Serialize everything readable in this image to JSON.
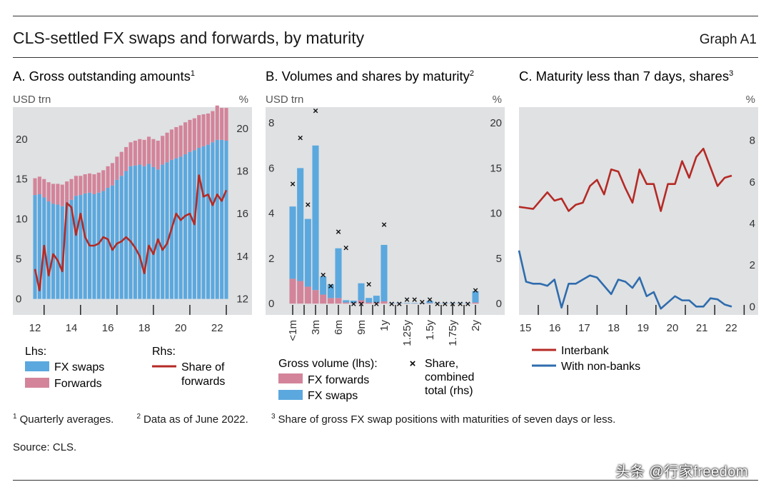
{
  "header": {
    "title": "CLS-settled FX swaps and forwards, by maturity",
    "graph_id": "Graph A1"
  },
  "footnotes": [
    {
      "num": "1",
      "text": "Quarterly averages."
    },
    {
      "num": "2",
      "text": "Data as of June 2022."
    },
    {
      "num": "3",
      "text": "Share of gross FX swap positions with maturities of seven days or less."
    }
  ],
  "source": "Source: CLS.",
  "watermark": "头条 @行家freedom",
  "colors": {
    "panel_bg": "#dfe1e3",
    "swaps": "#5ba8de",
    "forwards": "#d3849a",
    "red_line": "#b52a25",
    "blue_line": "#2f6cad",
    "marker": "#111111"
  },
  "chart_data": [
    {
      "type": "bar",
      "title": "A. Gross outstanding amounts",
      "title_sup": "1",
      "lhs_unit": "USD trn",
      "rhs_unit": "%",
      "ylim": [
        -2,
        24
      ],
      "y_ticks": [
        0,
        5,
        10,
        15,
        20
      ],
      "rhs_ylim": [
        11.25,
        21
      ],
      "rhs_ticks": [
        12,
        14,
        16,
        18,
        20
      ],
      "x_ticks": [
        "12",
        "14",
        "16",
        "18",
        "20",
        "22"
      ],
      "x_start_year": 2012,
      "series": [
        {
          "name": "FX swaps",
          "values": [
            13.0,
            13.1,
            12.7,
            12.2,
            11.9,
            11.8,
            11.6,
            12.0,
            12.4,
            12.9,
            13.0,
            13.2,
            13.3,
            13.1,
            13.3,
            13.5,
            13.9,
            14.2,
            14.9,
            15.4,
            16.0,
            16.6,
            16.7,
            16.8,
            16.6,
            16.9,
            16.5,
            16.2,
            16.8,
            17.1,
            17.4,
            17.6,
            17.8,
            18.1,
            18.4,
            18.6,
            18.9,
            19.1,
            19.3,
            19.6,
            19.9,
            19.9,
            19.8
          ]
        },
        {
          "name": "Forwards",
          "values": [
            2.1,
            2.2,
            2.3,
            2.4,
            2.5,
            2.6,
            2.7,
            2.7,
            2.6,
            2.5,
            2.4,
            2.4,
            2.4,
            2.5,
            2.5,
            2.6,
            2.7,
            2.8,
            2.9,
            3.0,
            3.0,
            3.0,
            3.1,
            3.2,
            3.3,
            3.4,
            3.5,
            3.6,
            3.6,
            3.7,
            3.8,
            3.9,
            3.9,
            4.0,
            4.0,
            4.0,
            4.1,
            4.0,
            3.9,
            3.9,
            4.3,
            4.0,
            4.1
          ]
        },
        {
          "name": "Share of forwards",
          "axis": "rhs",
          "values": [
            13.4,
            12.4,
            14.5,
            13.1,
            14.1,
            13.8,
            13.3,
            16.5,
            16.3,
            15.0,
            16.0,
            14.9,
            14.5,
            14.5,
            14.6,
            14.9,
            14.8,
            14.3,
            14.6,
            14.7,
            14.9,
            14.7,
            14.4,
            14.0,
            13.2,
            14.5,
            14.1,
            14.8,
            14.3,
            14.6,
            15.3,
            16.0,
            15.7,
            15.9,
            16.0,
            15.5,
            17.8,
            16.8,
            16.9,
            16.4,
            16.9,
            16.6,
            17.1
          ]
        }
      ],
      "legend": {
        "lhs_title": "Lhs:",
        "rhs_title": "Rhs:",
        "lhs_items": [
          "FX swaps",
          "Forwards"
        ],
        "rhs_label_lines": [
          "Share of",
          "forwards"
        ]
      }
    },
    {
      "type": "bar",
      "title": "B. Volumes and shares by maturity",
      "title_sup": "2",
      "lhs_unit": "USD trn",
      "rhs_unit": "%",
      "ylim": [
        -0.5,
        8.7
      ],
      "y_ticks": [
        0,
        2,
        4,
        6,
        8
      ],
      "rhs_ylim": [
        -1.25,
        21.75
      ],
      "rhs_ticks": [
        0,
        5,
        10,
        15,
        20
      ],
      "categories": [
        "<1m",
        "",
        "3m",
        "",
        "6m",
        "",
        "9m",
        "",
        "1y",
        "",
        "1.25y",
        "",
        "1.5y",
        "",
        "1.75y",
        "",
        "2y"
      ],
      "bars": [
        {
          "swaps": 3.2,
          "forwards": 1.1
        },
        {
          "swaps": 5.0,
          "forwards": 1.0
        },
        {
          "swaps": 3.0,
          "forwards": 0.75
        },
        {
          "swaps": 6.4,
          "forwards": 0.6
        },
        {
          "swaps": 0.8,
          "forwards": 0.4
        },
        {
          "swaps": 0.6,
          "forwards": 0.25
        },
        {
          "swaps": 2.2,
          "forwards": 0.25
        },
        {
          "swaps": 0.1,
          "forwards": 0.05
        },
        {
          "swaps": 0.1,
          "forwards": 0.03
        },
        {
          "swaps": 0.75,
          "forwards": 0.15
        },
        {
          "swaps": 0.2,
          "forwards": 0.05
        },
        {
          "swaps": 0.3,
          "forwards": 0.05
        },
        {
          "swaps": 2.5,
          "forwards": 0.1
        },
        {
          "swaps": 0.02,
          "forwards": 0.01
        },
        {
          "swaps": 0.02,
          "forwards": 0.01
        },
        {
          "swaps": 0.02,
          "forwards": 0.01
        },
        {
          "swaps": 0.02,
          "forwards": 0.01
        },
        {
          "swaps": 0.02,
          "forwards": 0.01
        },
        {
          "swaps": 0.1,
          "forwards": 0.02
        },
        {
          "swaps": 0.02,
          "forwards": 0.01
        },
        {
          "swaps": 0.02,
          "forwards": 0.01
        },
        {
          "swaps": 0.02,
          "forwards": 0.01
        },
        {
          "swaps": 0.02,
          "forwards": 0.01
        },
        {
          "swaps": 0.02,
          "forwards": 0.01
        },
        {
          "swaps": 0.5,
          "forwards": 0.05
        }
      ],
      "share_values": [
        13.3,
        18.4,
        11.0,
        21.4,
        3.2,
        2.0,
        8.0,
        6.2,
        0.0,
        0.0,
        2.2,
        0.0,
        8.8,
        0.0,
        0.0,
        0.5,
        0.5,
        0.2,
        0.5,
        0.0,
        0.0,
        0.0,
        0.0,
        0.0,
        1.5
      ],
      "legend": {
        "volume_title": "Gross volume (lhs):",
        "volume_items": [
          "FX forwards",
          "FX swaps"
        ],
        "share_label_lines": [
          "Share,",
          "combined",
          "total (rhs)"
        ]
      }
    },
    {
      "type": "line",
      "title": "C. Maturity less than 7 days, shares",
      "title_sup": "3",
      "rhs_unit": "%",
      "ylim": [
        -0.4,
        9.6
      ],
      "y_ticks": [
        0,
        2,
        4,
        6,
        8
      ],
      "x_ticks": [
        "15",
        "16",
        "17",
        "18",
        "19",
        "20",
        "21",
        "22"
      ],
      "x_start_year": 2015,
      "series": [
        {
          "name": "Interbank",
          "values": [
            4.8,
            4.75,
            4.7,
            5.1,
            5.5,
            5.1,
            5.2,
            4.6,
            4.9,
            5.0,
            5.8,
            6.1,
            5.4,
            6.6,
            6.5,
            5.7,
            5.0,
            6.6,
            5.9,
            5.9,
            4.6,
            5.9,
            5.9,
            7.0,
            6.2,
            7.2,
            7.6,
            6.7,
            5.8,
            6.2,
            6.3
          ]
        },
        {
          "name": "With non-banks",
          "values": [
            2.7,
            1.2,
            1.1,
            1.1,
            1.0,
            1.3,
            -0.05,
            1.1,
            1.1,
            1.3,
            1.5,
            1.4,
            1.0,
            0.6,
            1.3,
            1.2,
            0.9,
            1.4,
            0.5,
            0.7,
            -0.1,
            0.2,
            0.5,
            0.3,
            0.3,
            0.0,
            0.0,
            0.4,
            0.35,
            0.1,
            0.0
          ]
        }
      ],
      "legend": {
        "items": [
          "Interbank",
          "With non-banks"
        ]
      }
    }
  ]
}
